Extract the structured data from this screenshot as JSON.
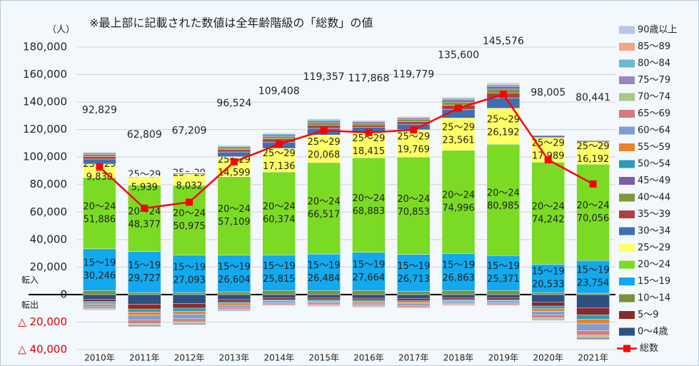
{
  "chart_data": {
    "type": "bar",
    "stacked": true,
    "title": "※最上部に記載された数値は全年齢階級の「総数」の値",
    "y_unit": "（人）",
    "annotations": [
      "転入",
      "転出"
    ],
    "categories": [
      "2010年",
      "2011年",
      "2012年",
      "2013年",
      "2014年",
      "2015年",
      "2016年",
      "2017年",
      "2018年",
      "2019年",
      "2020年",
      "2021年"
    ],
    "ylim": [
      -40000,
      180000
    ],
    "yticks": [
      {
        "value": -40000,
        "label": "△ 40,000"
      },
      {
        "value": -20000,
        "label": "△ 20,000"
      },
      0,
      {
        "value": 20000,
        "label": "20,000"
      },
      {
        "value": 40000,
        "label": "40,000"
      },
      {
        "value": 60000,
        "label": "60,000"
      },
      {
        "value": 80000,
        "label": "80,000"
      },
      {
        "value": 100000,
        "label": "100,000"
      },
      {
        "value": 120000,
        "label": "120,000"
      },
      {
        "value": 140000,
        "label": "140,000"
      },
      {
        "value": 160000,
        "label": "160,000"
      },
      {
        "value": 180000,
        "label": "180,000"
      }
    ],
    "grid": true,
    "legend": "right",
    "series": [
      {
        "name": "0～4歳",
        "color": "#2e4f82",
        "values": [
          -3300,
          -7000,
          -6600,
          -3700,
          -2500,
          -2600,
          -2700,
          -3000,
          -2500,
          -2500,
          -5600,
          -9800
        ]
      },
      {
        "name": "5～9",
        "color": "#8b2a2a",
        "values": [
          -1700,
          -3500,
          -3300,
          -1800,
          -1300,
          -1300,
          -1400,
          -1500,
          -1200,
          -1300,
          -2800,
          -4900
        ]
      },
      {
        "name": "10～14",
        "color": "#77933c",
        "values": [
          3000,
          1500,
          1500,
          2000,
          3000,
          3000,
          3000,
          2500,
          3000,
          3000,
          1500,
          1000
        ]
      },
      {
        "name": "15～19",
        "color": "#12a9ee",
        "values": [
          30246,
          29727,
          27093,
          26604,
          25815,
          26484,
          27664,
          26713,
          26863,
          25371,
          20533,
          23754
        ],
        "value_labels": [
          "30,246",
          "29,727",
          "27,093",
          "26,604",
          "25,815",
          "26,484",
          "27,664",
          "26,713",
          "26,863",
          "25,371",
          "20,533",
          "23,754"
        ]
      },
      {
        "name": "20～24",
        "color": "#7bdb24",
        "values": [
          51886,
          48377,
          50975,
          57109,
          60374,
          66517,
          68883,
          70853,
          74996,
          80985,
          74242,
          70056
        ],
        "value_labels": [
          "51,886",
          "48,377",
          "50,975",
          "57,109",
          "60,374",
          "66,517",
          "68,883",
          "70,853",
          "74,996",
          "80,985",
          "74,242",
          "70,056"
        ]
      },
      {
        "name": "25～29",
        "color": "#ffff66",
        "values": [
          9830,
          5939,
          8032,
          14599,
          17136,
          20068,
          18415,
          19769,
          23561,
          26192,
          17989,
          16192
        ],
        "value_labels": [
          "9,830",
          "5,939",
          "8,032",
          "14,599",
          "17,136",
          "20,068",
          "18,415",
          "19,769",
          "23,561",
          "26,192",
          "17,989",
          "16,192"
        ]
      },
      {
        "name": "30～34",
        "color": "#3f6fb0",
        "values": [
          3600,
          200,
          600,
          3400,
          4600,
          4800,
          3600,
          4000,
          6200,
          7400,
          1000,
          800
        ]
      },
      {
        "name": "35～39",
        "color": "#b04040",
        "values": [
          1800,
          100,
          300,
          1700,
          2300,
          2400,
          1800,
          2000,
          3100,
          3700,
          500,
          400
        ]
      },
      {
        "name": "40～44",
        "color": "#7a9a3a",
        "values": [
          1400,
          100,
          200,
          1300,
          1700,
          1800,
          1400,
          1500,
          2300,
          2800,
          400,
          300
        ]
      },
      {
        "name": "45～49",
        "color": "#7b5ea7",
        "values": [
          900,
          50,
          150,
          850,
          1150,
          1200,
          900,
          1000,
          1550,
          1850,
          250,
          200
        ]
      },
      {
        "name": "50～54",
        "color": "#2e9bb5",
        "values": [
          -1100,
          -2300,
          -2200,
          -1200,
          -800,
          -900,
          -900,
          -1000,
          -800,
          -800,
          -1900,
          -3300
        ]
      },
      {
        "name": "55～59",
        "color": "#e8842a",
        "values": [
          -1100,
          -2300,
          -2200,
          -1200,
          -800,
          -900,
          -900,
          -1000,
          -800,
          -800,
          -1900,
          -3300
        ]
      },
      {
        "name": "60～64",
        "color": "#7e9fd4",
        "values": [
          -1700,
          -3500,
          -3300,
          -1800,
          -1300,
          -1300,
          -1400,
          -1500,
          -1200,
          -1300,
          -2800,
          -4900
        ]
      },
      {
        "name": "65～69",
        "color": "#d47b7b",
        "values": [
          -1100,
          -2300,
          -2200,
          -1200,
          -800,
          -900,
          -900,
          -1000,
          -800,
          -800,
          -1900,
          -3300
        ]
      },
      {
        "name": "70～74",
        "color": "#a8c88a",
        "values": [
          -600,
          -1200,
          -1100,
          -600,
          -400,
          -400,
          -500,
          -500,
          -400,
          -400,
          -900,
          -1600
        ]
      },
      {
        "name": "75～79",
        "color": "#9b87c0",
        "values": [
          -600,
          -1200,
          -1100,
          -600,
          -400,
          -400,
          -500,
          -500,
          -400,
          -400,
          -900,
          -1600
        ]
      },
      {
        "name": "80～84",
        "color": "#6fb8d0",
        "values": [
          700,
          40,
          100,
          700,
          900,
          1000,
          700,
          800,
          1200,
          1500,
          200,
          200
        ]
      },
      {
        "name": "85～89",
        "color": "#f4a582",
        "values": [
          400,
          30,
          60,
          300,
          500,
          500,
          400,
          400,
          600,
          700,
          100,
          100
        ]
      },
      {
        "name": "90歳以上",
        "color": "#b8c7e6",
        "values": [
          300,
          20,
          50,
          300,
          300,
          400,
          300,
          300,
          500,
          600,
          100,
          100
        ]
      },
      {
        "name": "総数",
        "type": "line",
        "color": "#ff0000",
        "values": [
          92829,
          62809,
          67209,
          96524,
          109408,
          119357,
          117868,
          119779,
          135600,
          145576,
          98005,
          80441
        ],
        "value_labels": [
          "92,829",
          "62,809",
          "67,209",
          "96,524",
          "109,408",
          "119,357",
          "117,868",
          "119,779",
          "135,600",
          "145,576",
          "98,005",
          "80,441"
        ]
      }
    ]
  }
}
